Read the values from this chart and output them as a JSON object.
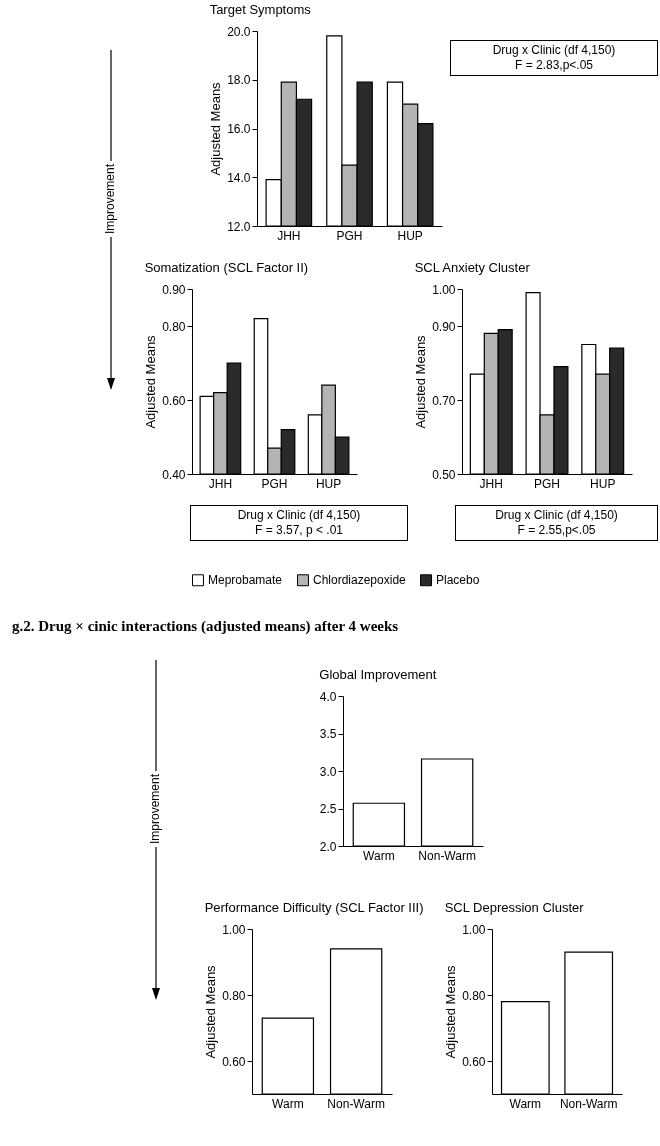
{
  "chart_data": [
    {
      "type": "other",
      "annotations": [
        "Improvement"
      ]
    },
    {
      "type": "bar",
      "title": "Target Symptoms",
      "ylabel": "Adjusted Means",
      "categories": [
        "JHH",
        "PGH",
        "HUP"
      ],
      "series": [
        {
          "color": "#ffffff",
          "values": [
            13.9,
            19.8,
            17.9
          ]
        },
        {
          "color": "#b4b4b4",
          "values": [
            17.9,
            14.5,
            17.0
          ]
        },
        {
          "color": "#2a2a2a",
          "values": [
            17.2,
            17.9,
            16.2
          ]
        }
      ],
      "ylim": [
        12,
        20
      ],
      "yticks": [
        {
          "value": 12,
          "label": "12.0"
        },
        {
          "value": 14,
          "label": "14.0"
        },
        {
          "value": 16,
          "label": "16.0"
        },
        {
          "value": 18,
          "label": "18.0"
        },
        {
          "value": 20,
          "label": "20.0"
        }
      ],
      "annotations": [
        "Drug x Clinic (df 4,150)",
        "F = 2.83,p<.05"
      ]
    },
    {
      "type": "bar",
      "title": "Somatization (SCL Factor II)",
      "ylabel": "Adjusted Means",
      "categories": [
        "JHH",
        "PGH",
        "HUP"
      ],
      "series": [
        {
          "name": "Meprobamate",
          "color": "#ffffff",
          "values": [
            0.61,
            0.82,
            0.56
          ]
        },
        {
          "name": "Chlordiazepoxide",
          "color": "#b4b4b4",
          "values": [
            0.62,
            0.47,
            0.64
          ]
        },
        {
          "name": "Placebo",
          "color": "#2a2a2a",
          "values": [
            0.7,
            0.52,
            0.5
          ]
        }
      ],
      "ylim": [
        0.4,
        0.9
      ],
      "yticks": [
        {
          "value": 0.4,
          "label": "0.40"
        },
        {
          "value": 0.6,
          "label": "0.60"
        },
        {
          "value": 0.8,
          "label": "0.80"
        },
        {
          "value": 0.9,
          "label": "0.90"
        }
      ],
      "legend": "bottom",
      "annotations": [
        "Drug x Clinic (df 4,150)",
        "F = 3.57, p < .01"
      ]
    },
    {
      "type": "bar",
      "title": "SCL Anxiety Cluster",
      "ylabel": "Adjusted Means",
      "categories": [
        "JHH",
        "PGH",
        "HUP"
      ],
      "series": [
        {
          "color": "#ffffff",
          "values": [
            0.77,
            0.99,
            0.85
          ]
        },
        {
          "color": "#b4b4b4",
          "values": [
            0.88,
            0.66,
            0.77
          ]
        },
        {
          "color": "#2a2a2a",
          "values": [
            0.89,
            0.79,
            0.84
          ]
        }
      ],
      "ylim": [
        0.5,
        1.0
      ],
      "yticks": [
        {
          "value": 0.5,
          "label": "0.50"
        },
        {
          "value": 0.7,
          "label": "0.70"
        },
        {
          "value": 0.9,
          "label": "0.90"
        },
        {
          "value": 1.0,
          "label": "1.00"
        }
      ],
      "annotations": [
        "Drug x Clinic (df 4,150)",
        "F = 2.55,p<.05"
      ]
    },
    {
      "type": "other",
      "title": "g.2. Drug × cinic interactions (adjusted means) after 4 weeks"
    },
    {
      "type": "other",
      "annotations": [
        "Improvement"
      ]
    },
    {
      "type": "bar",
      "title": "Global Improvement",
      "categories": [
        "Warm",
        "Non-Warm"
      ],
      "values": [
        2.57,
        3.16
      ],
      "color": "#ffffff",
      "ylim": [
        2.0,
        4.0
      ],
      "yticks": [
        {
          "value": 2,
          "label": "2.0"
        },
        2.5,
        {
          "value": 3,
          "label": "3.0"
        },
        3.5,
        {
          "value": 4,
          "label": "4.0"
        }
      ]
    },
    {
      "type": "bar",
      "title": "Performance Difficulty (SCL Factor III)",
      "ylabel": "Adjusted Means",
      "categories": [
        "Warm",
        "Non-Warm"
      ],
      "values": [
        0.73,
        0.94
      ],
      "color": "#ffffff",
      "ylim": [
        0.5,
        1.0
      ],
      "yticks": [
        {
          "value": 0.6,
          "label": "0.60"
        },
        {
          "value": 0.8,
          "label": "0.80"
        },
        {
          "value": 1.0,
          "label": "1.00"
        }
      ]
    },
    {
      "type": "bar",
      "title": "SCL Depression Cluster",
      "ylabel": "Adjusted Means",
      "categories": [
        "Warm",
        "Non-Warm"
      ],
      "values": [
        0.78,
        0.93
      ],
      "color": "#ffffff",
      "ylim": [
        0.5,
        1.0
      ],
      "yticks": [
        {
          "value": 0.6,
          "label": "0.60"
        },
        {
          "value": 0.8,
          "label": "0.80"
        },
        {
          "value": 1.0,
          "label": "1.00"
        }
      ]
    }
  ]
}
